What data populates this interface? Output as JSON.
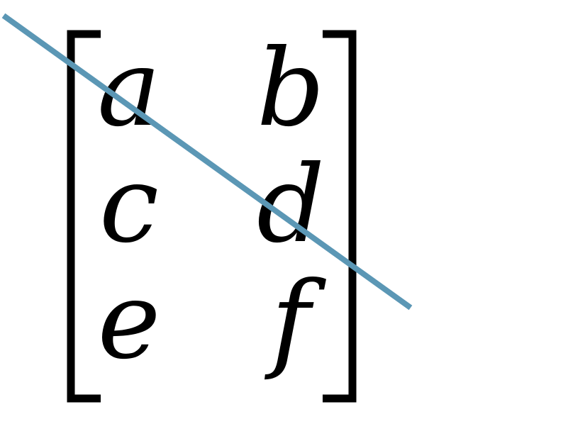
{
  "matrix": {
    "rows": [
      [
        "a",
        "b"
      ],
      [
        "c",
        "d"
      ],
      [
        "e",
        "f"
      ]
    ],
    "bracket_color": "#000000"
  },
  "diagonal_line": {
    "color": "#5b97b5"
  }
}
